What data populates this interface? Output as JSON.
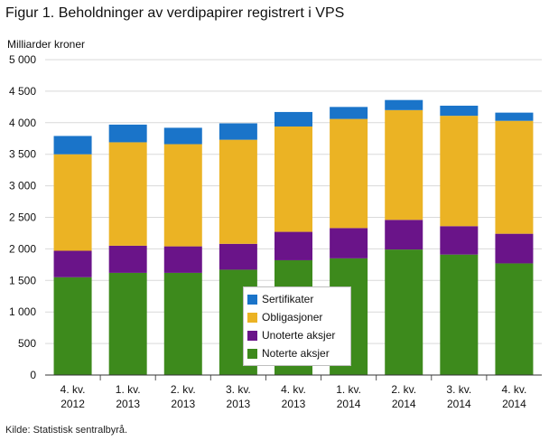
{
  "title": "Figur 1. Beholdninger av verdipapirer registrert i VPS",
  "source": "Kilde: Statistisk sentralbyrå.",
  "chart_data": {
    "type": "bar",
    "stacked": true,
    "ylabel": "Milliarder  kroner",
    "ylim": [
      0,
      5000
    ],
    "yticks": [
      0,
      500,
      1000,
      1500,
      2000,
      2500,
      3000,
      3500,
      4000,
      4500,
      5000
    ],
    "ytick_labels": [
      "0",
      "500",
      "1 000",
      "1 500",
      "2 000",
      "2 500",
      "3 000",
      "3 500",
      "4 000",
      "4 500",
      "5 000"
    ],
    "grid": true,
    "legend_position": "lower-center",
    "categories": [
      [
        "4. kv.",
        "2012"
      ],
      [
        "1. kv.",
        "2013"
      ],
      [
        "2. kv.",
        "2013"
      ],
      [
        "3. kv.",
        "2013"
      ],
      [
        "4. kv.",
        "2013"
      ],
      [
        "1. kv.",
        "2014"
      ],
      [
        "2. kv.",
        "2014"
      ],
      [
        "3. kv.",
        "2014"
      ],
      [
        "4. kv.",
        "2014"
      ]
    ],
    "series": [
      {
        "name": "Noterte aksjer",
        "color": "#3d8a1c",
        "values": [
          1550,
          1620,
          1620,
          1670,
          1820,
          1850,
          1990,
          1910,
          1770
        ]
      },
      {
        "name": "Unoterte aksjer",
        "color": "#6a1489",
        "values": [
          420,
          430,
          420,
          410,
          450,
          480,
          470,
          450,
          470
        ]
      },
      {
        "name": "Obligasjoner",
        "color": "#ebb324",
        "values": [
          1530,
          1640,
          1620,
          1650,
          1670,
          1730,
          1740,
          1750,
          1790
        ]
      },
      {
        "name": "Sertifikater",
        "color": "#1a74c9",
        "values": [
          290,
          280,
          260,
          260,
          230,
          190,
          160,
          160,
          130
        ]
      }
    ],
    "legend_order": [
      "Sertifikater",
      "Obligasjoner",
      "Unoterte aksjer",
      "Noterte aksjer"
    ]
  }
}
